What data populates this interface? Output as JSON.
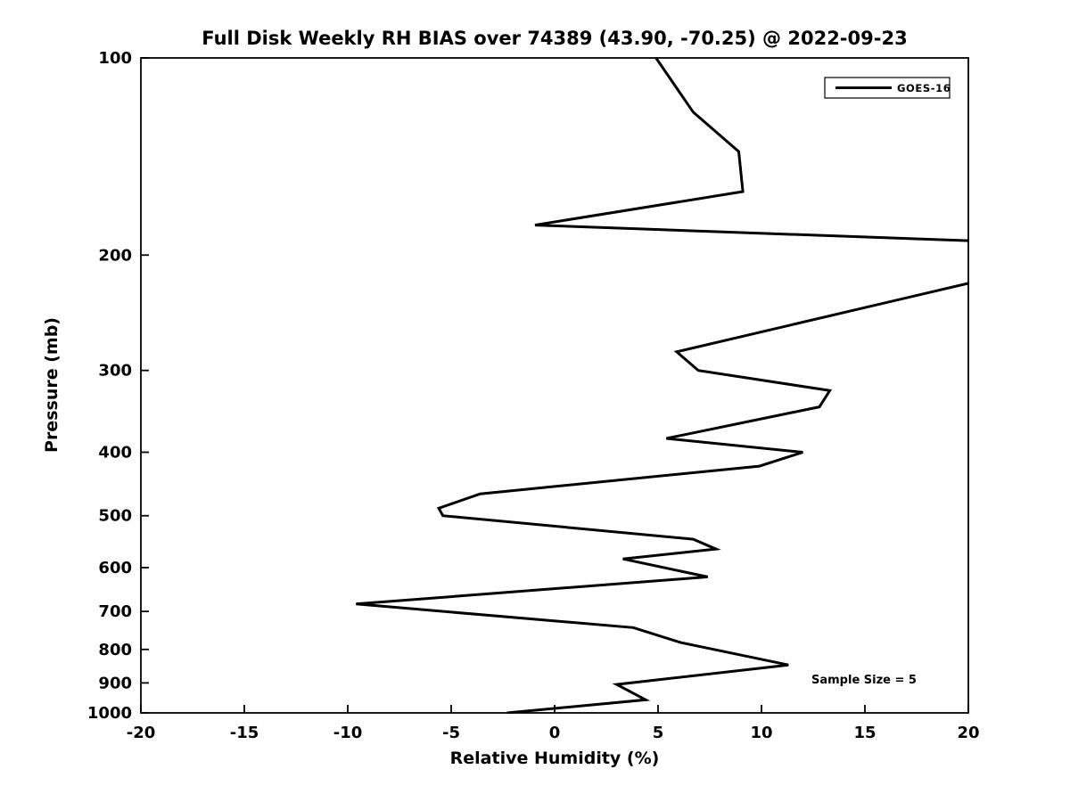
{
  "chart_data": {
    "type": "line",
    "title": "Full Disk Weekly RH BIAS over 74389 (43.90, -70.25) @ 2022-09-23",
    "xlabel": "Relative Humidity (%)",
    "ylabel": "Pressure (mb)",
    "xlim": [
      -20,
      20
    ],
    "x_ticks": [
      -20,
      -15,
      -10,
      -5,
      0,
      5,
      10,
      15,
      20
    ],
    "ylim": [
      100,
      1000
    ],
    "y_ticks": [
      100,
      200,
      300,
      400,
      500,
      600,
      700,
      800,
      900,
      1000
    ],
    "y_scale": "log",
    "y_inverted": true,
    "grid": false,
    "legend": {
      "position": "upper right",
      "entries": [
        {
          "label": "GOES-16",
          "color": "#000000"
        }
      ]
    },
    "annotation": {
      "text": "Sample Size = 5"
    },
    "series": [
      {
        "name": "GOES-16",
        "color": "#000000",
        "points_rh_pressure": [
          [
            4.9,
            100
          ],
          [
            6.7,
            121
          ],
          [
            8.9,
            139
          ],
          [
            9.1,
            160
          ],
          [
            -0.95,
            180
          ],
          [
            27.6,
            194
          ],
          [
            5.9,
            281
          ],
          [
            6.95,
            300
          ],
          [
            13.3,
            322
          ],
          [
            12.8,
            341
          ],
          [
            5.4,
            381
          ],
          [
            12.0,
            400
          ],
          [
            9.9,
            420
          ],
          [
            -3.6,
            463
          ],
          [
            -5.6,
            487
          ],
          [
            -5.4,
            500
          ],
          [
            6.7,
            543
          ],
          [
            7.8,
            562
          ],
          [
            3.3,
            582
          ],
          [
            7.4,
            620
          ],
          [
            -9.6,
            682
          ],
          [
            3.8,
            741
          ],
          [
            6.1,
            781
          ],
          [
            11.3,
            845
          ],
          [
            3.0,
            905
          ],
          [
            4.4,
            955
          ],
          [
            -2.3,
            1000
          ]
        ]
      }
    ]
  },
  "colors": {
    "foreground": "#000000",
    "background": "#ffffff"
  }
}
